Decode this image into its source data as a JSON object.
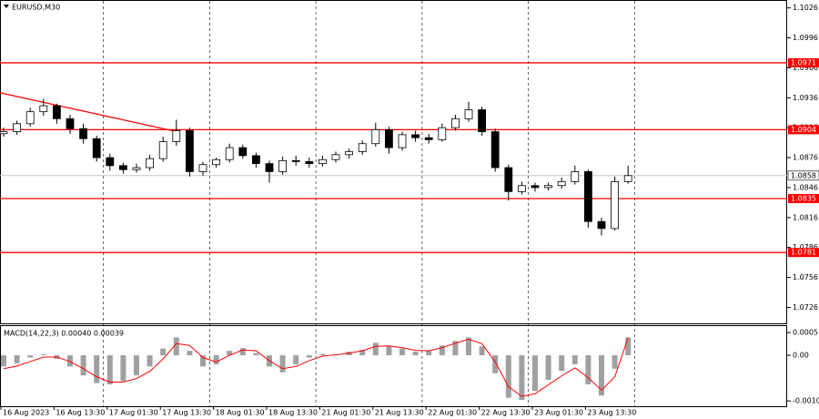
{
  "chart_data": [
    {
      "type": "candlestick",
      "title": "EURUSD,M30",
      "categories": [
        "16 Aug 2023",
        null,
        null,
        null,
        "16 Aug 13:30",
        null,
        null,
        null,
        "17 Aug 01:30",
        null,
        null,
        null,
        "17 Aug 13:30",
        null,
        null,
        null,
        "18 Aug 01:30",
        null,
        null,
        null,
        "18 Aug 13:30",
        null,
        null,
        null,
        "21 Aug 01:30",
        null,
        null,
        null,
        "21 Aug 13:30",
        null,
        null,
        null,
        "22 Aug 01:30",
        null,
        null,
        null,
        "22 Aug 13:30",
        null,
        null,
        null,
        "23 Aug 01:30",
        null,
        null,
        null,
        "23 Aug 13:30",
        null,
        null,
        null
      ],
      "open": [
        1.09,
        1.0902,
        1.091,
        1.0922,
        1.0928,
        1.0915,
        1.0905,
        1.0895,
        1.0876,
        1.0868,
        1.0864,
        1.0866,
        1.0875,
        1.0892,
        1.0903,
        1.0862,
        1.0869,
        1.0874,
        1.0886,
        1.0878,
        1.087,
        1.0862,
        1.0873,
        1.0872,
        1.087,
        1.0874,
        1.0879,
        1.0882,
        1.089,
        1.0904,
        1.0886,
        1.0899,
        1.0896,
        1.0894,
        1.0906,
        1.0915,
        1.0924,
        1.0902,
        1.0866,
        1.0842,
        1.0848,
        1.0846,
        1.0848,
        1.0852,
        1.0862,
        1.0812,
        1.0805,
        1.0852
      ],
      "high": [
        1.0906,
        1.0913,
        1.0926,
        1.0935,
        1.093,
        1.0919,
        1.091,
        1.0898,
        1.088,
        1.0871,
        1.087,
        1.0879,
        1.0897,
        1.0914,
        1.0906,
        1.0872,
        1.0876,
        1.089,
        1.0889,
        1.0881,
        1.0873,
        1.0877,
        1.0878,
        1.0876,
        1.0878,
        1.0882,
        1.0885,
        1.0893,
        1.0911,
        1.0907,
        1.0902,
        1.0903,
        1.09,
        1.091,
        1.0919,
        1.0932,
        1.0927,
        1.0905,
        1.0869,
        1.0852,
        1.0851,
        1.0851,
        1.0856,
        1.0868,
        1.0864,
        1.0816,
        1.0857,
        1.0868
      ],
      "low": [
        1.0897,
        1.0899,
        1.0907,
        1.0918,
        1.091,
        1.09,
        1.089,
        1.0872,
        1.0863,
        1.086,
        1.0861,
        1.0863,
        1.0872,
        1.0888,
        1.0857,
        1.0858,
        1.0866,
        1.0871,
        1.0875,
        1.0866,
        1.0851,
        1.0859,
        1.0868,
        1.0866,
        1.0867,
        1.0871,
        1.0875,
        1.0879,
        1.0887,
        1.088,
        1.0883,
        1.0892,
        1.089,
        1.0892,
        1.0903,
        1.0912,
        1.0898,
        1.0862,
        1.0833,
        1.0839,
        1.0842,
        1.0843,
        1.0845,
        1.0849,
        1.0806,
        1.0798,
        1.0803,
        1.085
      ],
      "close": [
        1.0902,
        1.091,
        1.0922,
        1.0928,
        1.0915,
        1.0905,
        1.0895,
        1.0876,
        1.0868,
        1.0864,
        1.0866,
        1.0875,
        1.0892,
        1.0903,
        1.0862,
        1.0869,
        1.0874,
        1.0886,
        1.0878,
        1.087,
        1.0862,
        1.0873,
        1.0872,
        1.087,
        1.0874,
        1.0879,
        1.0882,
        1.089,
        1.0904,
        1.0886,
        1.0899,
        1.0896,
        1.0894,
        1.0906,
        1.0915,
        1.0924,
        1.0902,
        1.0866,
        1.0842,
        1.0848,
        1.0846,
        1.0848,
        1.0852,
        1.0862,
        1.0812,
        1.0805,
        1.0852,
        1.0858
      ],
      "ylim": [
        1.071,
        1.1033
      ],
      "yticks": [
        1.1026,
        1.0996,
        1.0966,
        1.0936,
        1.0906,
        1.0876,
        1.0846,
        1.0816,
        1.0786,
        1.0756,
        1.0726
      ],
      "levels": [
        1.0971,
        1.0904,
        1.0835,
        1.0781
      ],
      "level_color": "#ff0000",
      "current_price": 1.0858,
      "trendline": {
        "x": [
          0,
          12.7
        ],
        "y": [
          1.0941,
          1.0903
        ],
        "color": "#ff0000"
      }
    },
    {
      "type": "macd",
      "title": "MACD(14,22,3) 0.00040 0.00039",
      "histogram": [
        -0.00025,
        -0.00018,
        -5e-05,
        2e-05,
        -8e-05,
        -0.00025,
        -0.00045,
        -0.00062,
        -0.00065,
        -0.00058,
        -0.00045,
        -0.00025,
        0.00015,
        0.0004,
        0.0001,
        -0.00025,
        -0.0002,
        0.0001,
        0.00016,
        5e-05,
        -0.00025,
        -0.00038,
        -0.0002,
        -5e-05,
        3e-05,
        2e-05,
        8e-05,
        0.00012,
        0.00028,
        0.0002,
        0.00015,
        8e-05,
        0.0001,
        0.00022,
        0.00032,
        0.0004,
        0.0002,
        -0.0004,
        -0.00095,
        -0.001,
        -0.0008,
        -0.00055,
        -0.00035,
        -0.0002,
        -0.00065,
        -0.0009,
        -0.0003,
        0.0004
      ],
      "signal": [
        -0.0003,
        -0.00024,
        -0.00014,
        -4e-05,
        -4e-05,
        -0.00014,
        -0.0003,
        -0.00048,
        -0.0006,
        -0.0006,
        -0.00052,
        -0.00036,
        -8e-05,
        0.00026,
        0.00022,
        -5e-05,
        -0.00015,
        0.0,
        0.00012,
        0.0001,
        -0.00012,
        -0.0003,
        -0.00025,
        -0.00012,
        -2e-05,
        1e-05,
        5e-05,
        0.0001,
        0.0002,
        0.00021,
        0.00017,
        0.00011,
        0.0001,
        0.00017,
        0.00027,
        0.00036,
        0.00026,
        -0.00015,
        -0.0007,
        -0.00092,
        -0.00086,
        -0.00066,
        -0.00046,
        -0.00028,
        -0.0005,
        -0.00078,
        -0.00048,
        0.00039
      ],
      "histogram_color": "#a0a0a0",
      "signal_color": "#ff0000",
      "ylim": [
        -0.00116,
        0.000653
      ],
      "yticks": [
        0.00051,
        {
          "value": 0,
          "label": "0.00"
        },
        -0.00102
      ]
    }
  ]
}
